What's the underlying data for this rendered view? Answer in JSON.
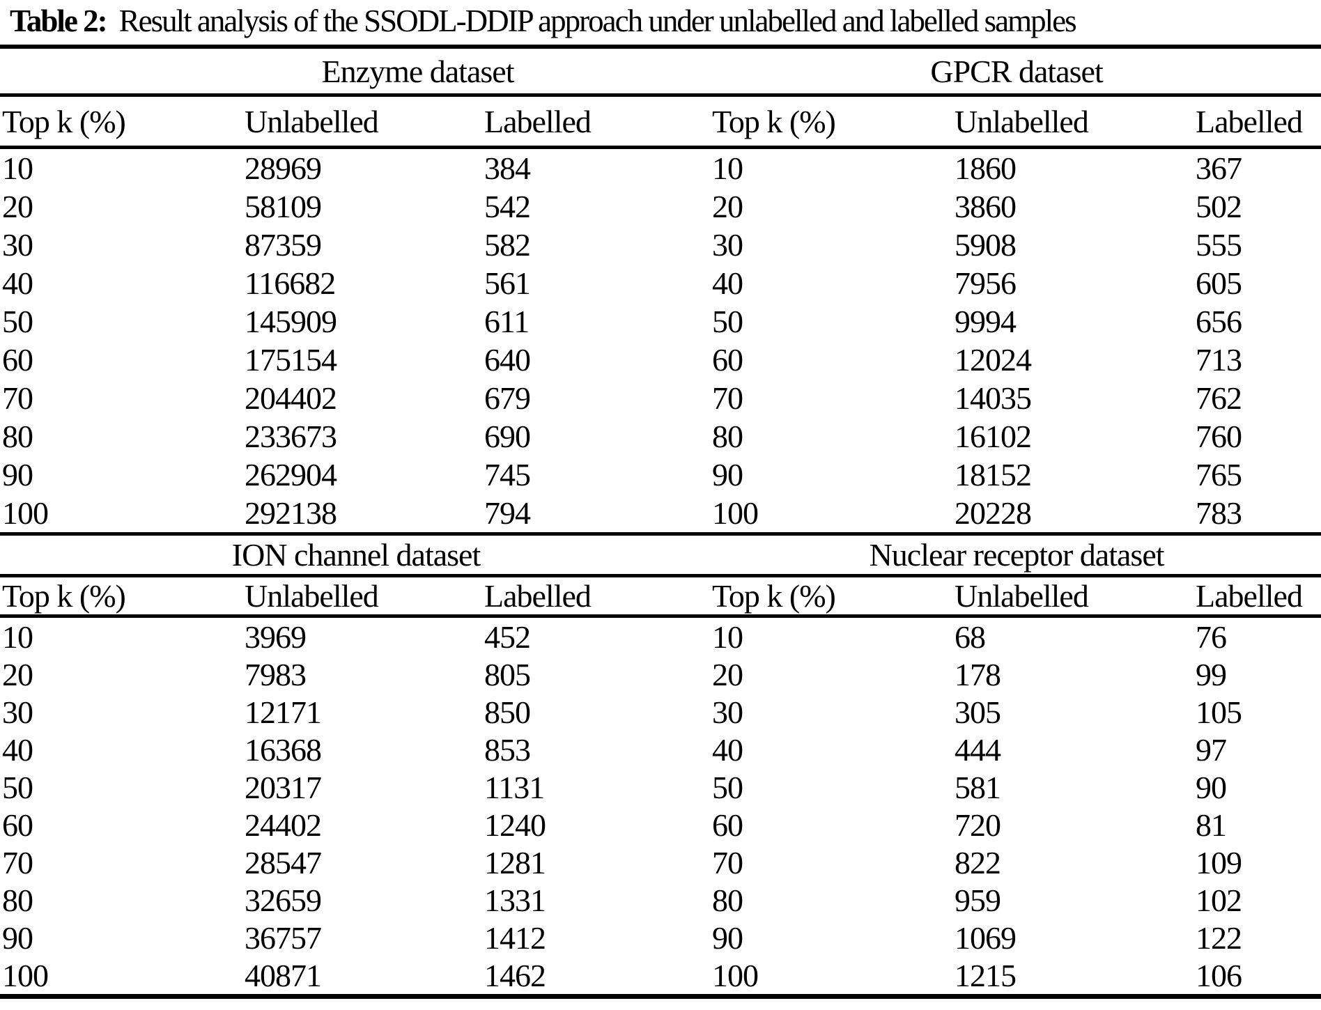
{
  "title": {
    "label": "Table 2:",
    "text": "Result analysis of the SSODL-DDIP approach under unlabelled and labelled samples"
  },
  "columns": [
    "Top k (%)",
    "Unlabelled",
    "Labelled"
  ],
  "colors": {
    "text": "#000000",
    "background": "#ffffff",
    "rule": "#000000"
  },
  "sections": [
    {
      "left": {
        "name": "Enzyme dataset",
        "rows": [
          [
            10,
            28969,
            384
          ],
          [
            20,
            58109,
            542
          ],
          [
            30,
            87359,
            582
          ],
          [
            40,
            116682,
            561
          ],
          [
            50,
            145909,
            611
          ],
          [
            60,
            175154,
            640
          ],
          [
            70,
            204402,
            679
          ],
          [
            80,
            233673,
            690
          ],
          [
            90,
            262904,
            745
          ],
          [
            100,
            292138,
            794
          ]
        ]
      },
      "right": {
        "name": "GPCR dataset",
        "rows": [
          [
            10,
            1860,
            367
          ],
          [
            20,
            3860,
            502
          ],
          [
            30,
            5908,
            555
          ],
          [
            40,
            7956,
            605
          ],
          [
            50,
            9994,
            656
          ],
          [
            60,
            12024,
            713
          ],
          [
            70,
            14035,
            762
          ],
          [
            80,
            16102,
            760
          ],
          [
            90,
            18152,
            765
          ],
          [
            100,
            20228,
            783
          ]
        ]
      }
    },
    {
      "left": {
        "name": "ION channel dataset",
        "rows": [
          [
            10,
            3969,
            452
          ],
          [
            20,
            7983,
            805
          ],
          [
            30,
            12171,
            850
          ],
          [
            40,
            16368,
            853
          ],
          [
            50,
            20317,
            1131
          ],
          [
            60,
            24402,
            1240
          ],
          [
            70,
            28547,
            1281
          ],
          [
            80,
            32659,
            1331
          ],
          [
            90,
            36757,
            1412
          ],
          [
            100,
            40871,
            1462
          ]
        ]
      },
      "right": {
        "name": "Nuclear receptor dataset",
        "rows": [
          [
            10,
            68,
            76
          ],
          [
            20,
            178,
            99
          ],
          [
            30,
            305,
            105
          ],
          [
            40,
            444,
            97
          ],
          [
            50,
            581,
            90
          ],
          [
            60,
            720,
            81
          ],
          [
            70,
            822,
            109
          ],
          [
            80,
            959,
            102
          ],
          [
            90,
            1069,
            122
          ],
          [
            100,
            1215,
            106
          ]
        ]
      }
    }
  ]
}
